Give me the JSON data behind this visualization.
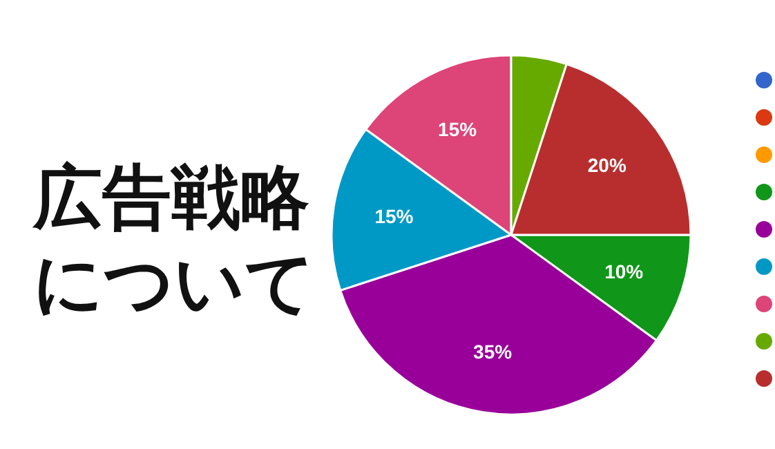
{
  "chart_data": {
    "type": "pie",
    "title": "広告戦略について",
    "categories": [
      null,
      null,
      null,
      null,
      null,
      null
    ],
    "values": [
      10,
      35,
      15,
      15,
      5,
      20
    ],
    "colors": [
      "#109618",
      "#990099",
      "#0099c6",
      "#dd4477",
      "#66aa00",
      "#b82e2e"
    ],
    "value_labels": [
      "10%",
      "35%",
      "15%",
      "15%",
      null,
      "20%"
    ]
  }
}
